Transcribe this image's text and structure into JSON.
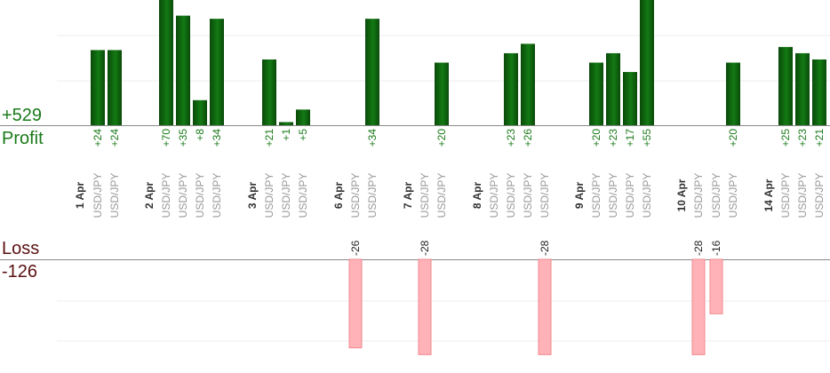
{
  "summary": {
    "profit_total": "+529",
    "profit_label": "Profit",
    "loss_label": "Loss",
    "loss_total": "-126"
  },
  "colors": {
    "profit_bar_dark": "#0a4a0a",
    "profit_bar_light": "#137a13",
    "profit_text": "#1a7a1a",
    "loss_bar": "#ffb3b8",
    "loss_bar_border": "#f08890",
    "loss_text": "#5a1010",
    "date_label": "#333333",
    "pair_label": "#999999",
    "gridline": "#eeeeee",
    "baseline": "#888888"
  },
  "chart_data": {
    "type": "bar",
    "title": "",
    "xlabel": "",
    "ylabel": "",
    "profit_ylim": [
      0,
      40
    ],
    "loss_ylim": [
      -30,
      0
    ],
    "grid": true,
    "groups": [
      {
        "date": "1 Apr",
        "trades": [
          {
            "pair": "USD/JPY",
            "value": 24,
            "label": "+24"
          },
          {
            "pair": "USD/JPY",
            "value": 24,
            "label": "+24"
          }
        ]
      },
      {
        "date": "2 Apr",
        "trades": [
          {
            "pair": "USD/JPY",
            "value": 70,
            "label": "+70"
          },
          {
            "pair": "USD/JPY",
            "value": 35,
            "label": "+35"
          },
          {
            "pair": "USD/JPY",
            "value": 8,
            "label": "+8"
          },
          {
            "pair": "USD/JPY",
            "value": 34,
            "label": "+34"
          }
        ]
      },
      {
        "date": "3 Apr",
        "trades": [
          {
            "pair": "USD/JPY",
            "value": 21,
            "label": "+21"
          },
          {
            "pair": "USD/JPY",
            "value": 1,
            "label": "+1"
          },
          {
            "pair": "USD/JPY",
            "value": 5,
            "label": "+5"
          }
        ]
      },
      {
        "date": "6 Apr",
        "trades": [
          {
            "pair": "USD/JPY",
            "value": -26,
            "label": "-26"
          },
          {
            "pair": "USD/JPY",
            "value": 34,
            "label": "+34"
          }
        ]
      },
      {
        "date": "7 Apr",
        "trades": [
          {
            "pair": "USD/JPY",
            "value": -28,
            "label": "-28"
          },
          {
            "pair": "USD/JPY",
            "value": 20,
            "label": "+20"
          }
        ]
      },
      {
        "date": "8 Apr",
        "trades": [
          {
            "pair": "USD/JPY",
            "value": 23,
            "label": "+23"
          },
          {
            "pair": "USD/JPY",
            "value": 26,
            "label": "+26"
          },
          {
            "pair": "USD/JPY",
            "value": -28,
            "label": "-28"
          }
        ]
      },
      {
        "date": "9 Apr",
        "trades": [
          {
            "pair": "USD/JPY",
            "value": 20,
            "label": "+20"
          },
          {
            "pair": "USD/JPY",
            "value": 23,
            "label": "+23"
          },
          {
            "pair": "USD/JPY",
            "value": 17,
            "label": "+17"
          },
          {
            "pair": "USD/JPY",
            "value": 55,
            "label": "+55"
          }
        ]
      },
      {
        "date": "10 Apr",
        "trades": [
          {
            "pair": "USD/JPY",
            "value": -28,
            "label": "-28"
          },
          {
            "pair": "USD/JPY",
            "value": -16,
            "label": "-16"
          },
          {
            "pair": "USD/JPY",
            "value": 20,
            "label": "+20"
          }
        ]
      },
      {
        "date": "14 Apr",
        "trades": [
          {
            "pair": "USD/JPY",
            "value": 25,
            "label": "+25"
          },
          {
            "pair": "USD/JPY",
            "value": 23,
            "label": "+23"
          },
          {
            "pair": "USD/JPY",
            "value": 21,
            "label": "+21"
          }
        ]
      }
    ]
  }
}
